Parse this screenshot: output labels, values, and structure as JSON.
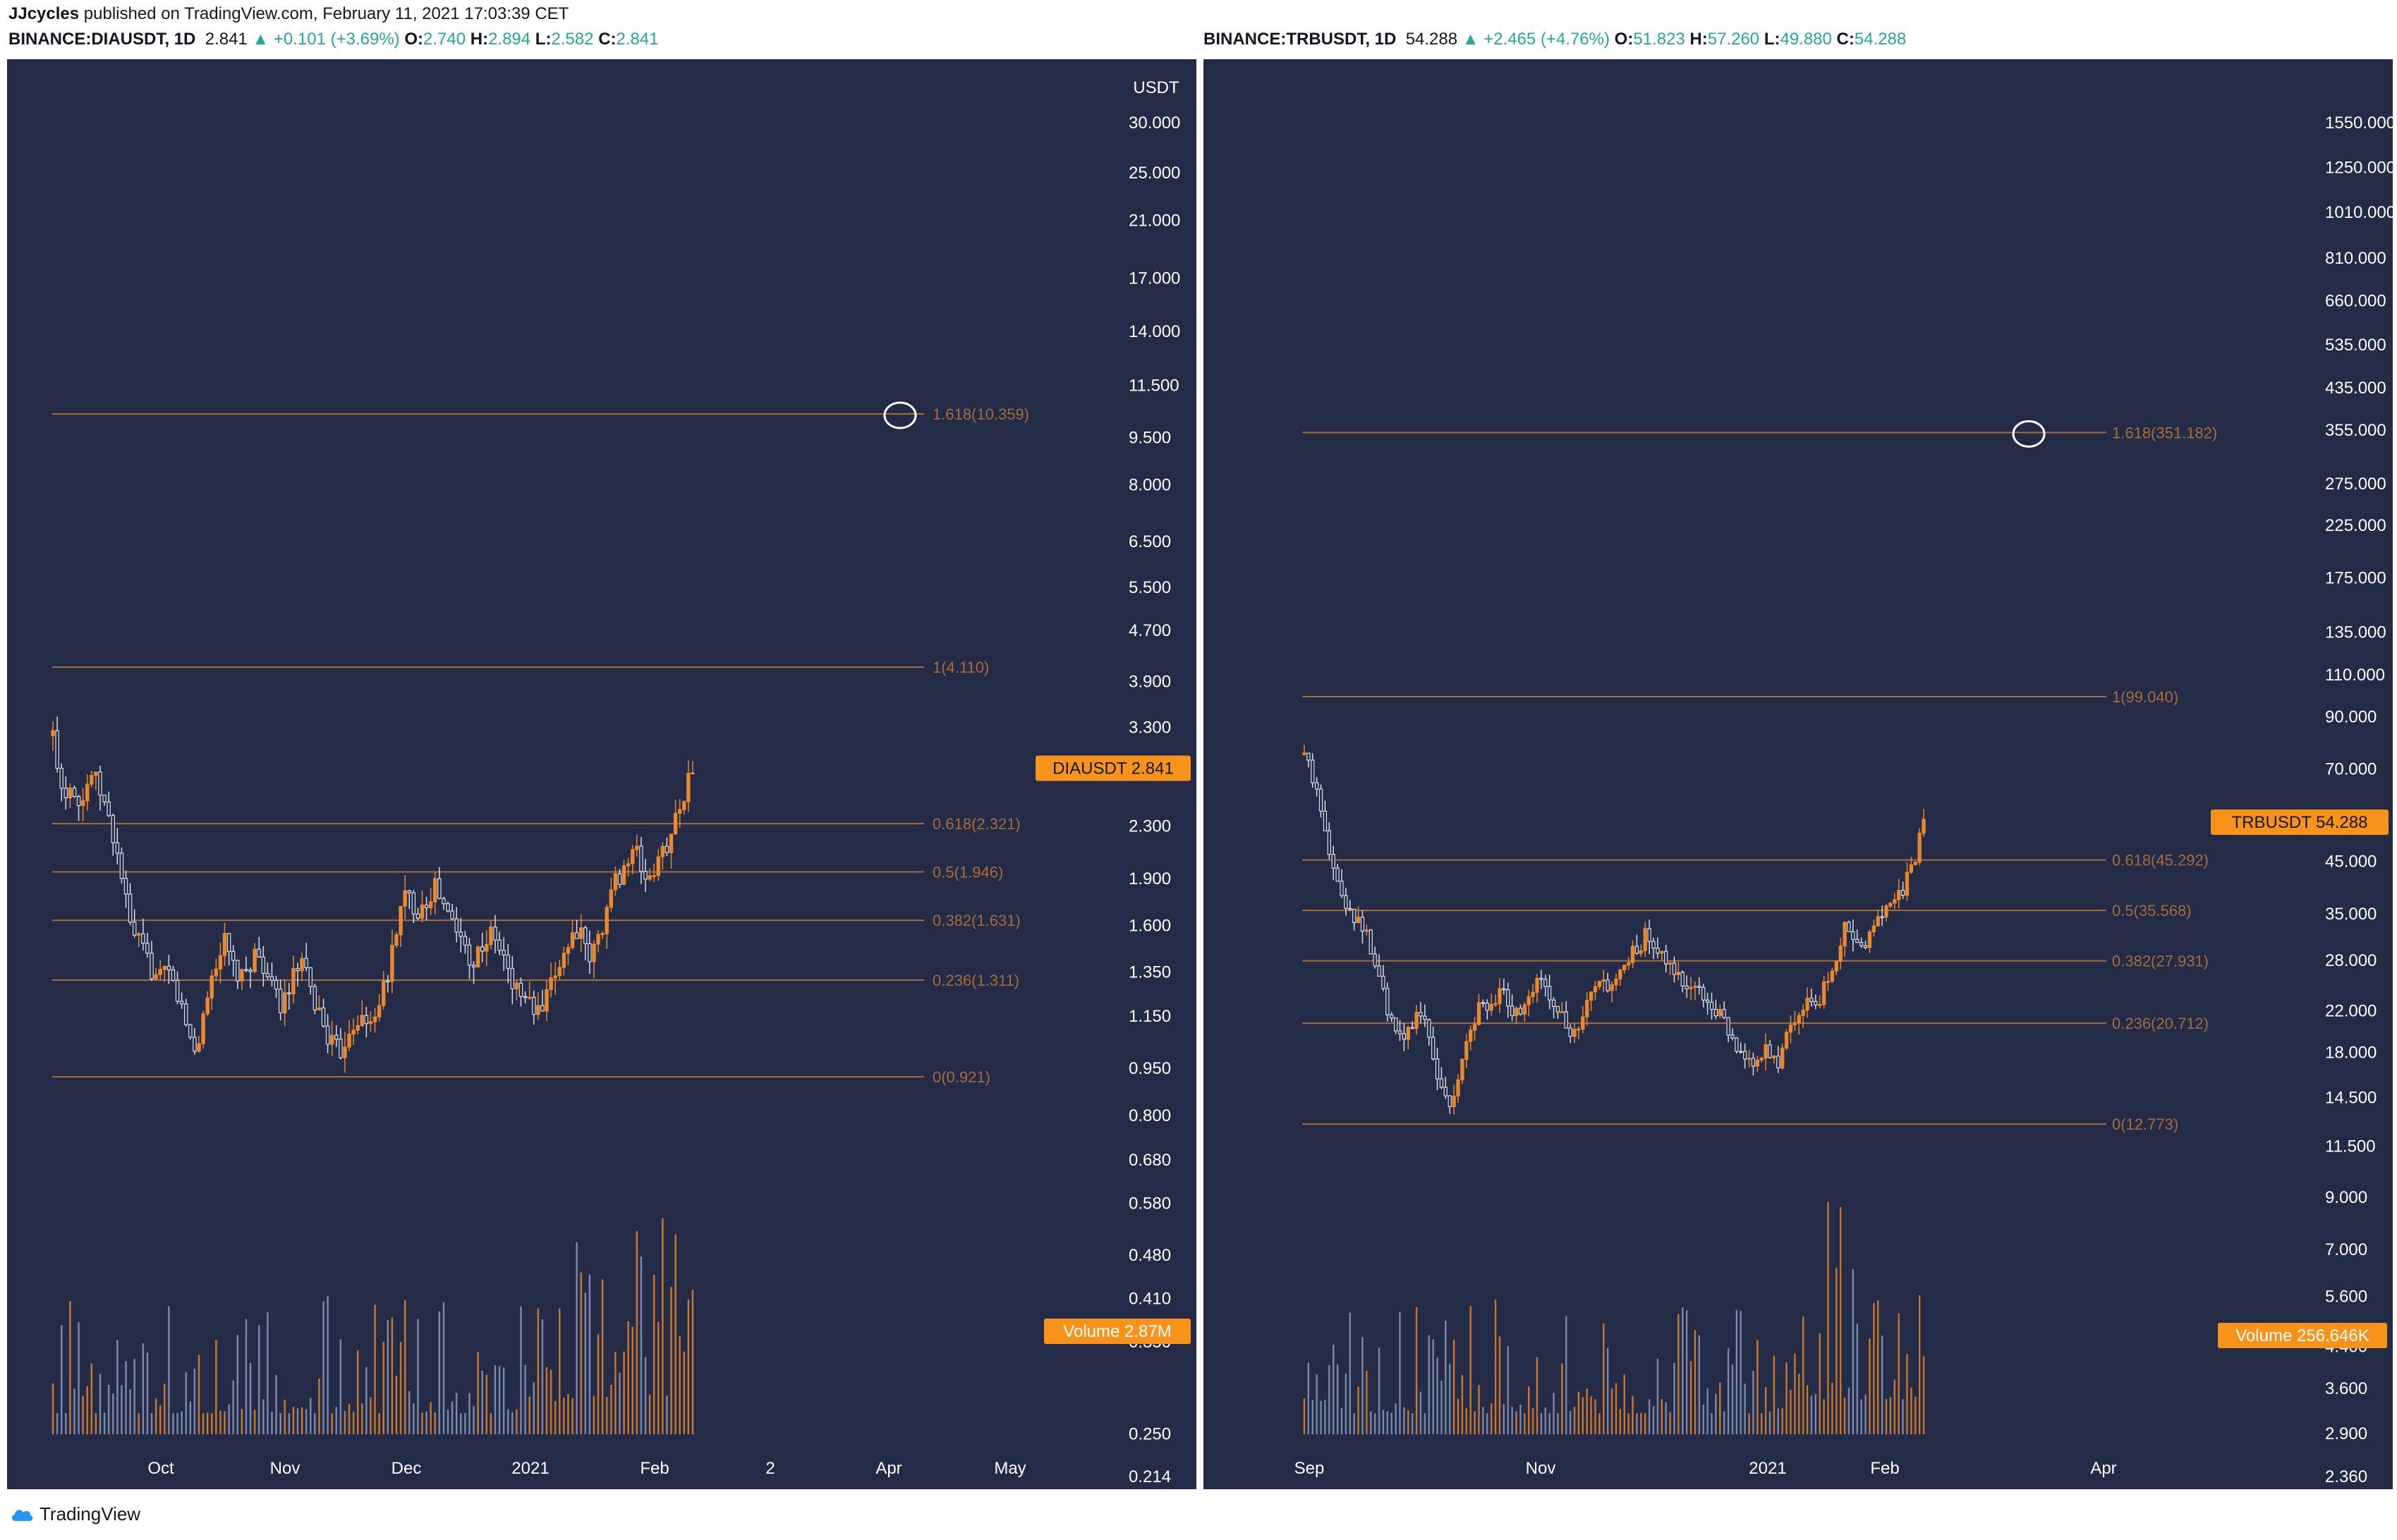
{
  "header": {
    "author": "JJcycles",
    "published": "published on TradingView.com, February 11, 2021 17:03:39 CET"
  },
  "footer": {
    "brand": "TradingView",
    "logo_icon": "tradingview-cloud-icon"
  },
  "colors": {
    "background": "#232b47",
    "bull_candle": "#e8892f",
    "bear_candle": "#d8dce8",
    "volume_up": "#c9782e",
    "volume_down": "#7d88aa",
    "fib_line": "#a86c3a",
    "badge": "#f7931a"
  },
  "chart_data": [
    {
      "type": "candlestick",
      "symbol": "BINANCE:DIAUSDT, 1D",
      "quote": {
        "last": "2.841",
        "change": "▲ +0.101 (+3.69%)",
        "O": "2.740",
        "H": "2.894",
        "L": "2.582",
        "C": "2.841"
      },
      "y_scale": "log",
      "currency": "USDT",
      "y_ticks": [
        "30.000",
        "25.000",
        "21.000",
        "17.000",
        "14.000",
        "11.500",
        "9.500",
        "8.000",
        "6.500",
        "5.500",
        "4.700",
        "3.900",
        "3.300",
        "2.300",
        "1.900",
        "1.600",
        "1.350",
        "1.150",
        "0.950",
        "0.800",
        "0.680",
        "0.580",
        "0.480",
        "0.410",
        "0.350",
        "0.250",
        "0.214"
      ],
      "x_ticks": [
        "Oct",
        "Nov",
        "Dec",
        "2021",
        "Feb",
        "2",
        "Apr",
        "May"
      ],
      "fib_levels": [
        {
          "label": "1.618(10.359)",
          "value": 10.359
        },
        {
          "label": "1(4.110)",
          "value": 4.11
        },
        {
          "label": "0.618(2.321)",
          "value": 2.321
        },
        {
          "label": "0.5(1.946)",
          "value": 1.946
        },
        {
          "label": "0.382(1.631)",
          "value": 1.631
        },
        {
          "label": "0.236(1.311)",
          "value": 1.311
        },
        {
          "label": "0(0.921)",
          "value": 0.921
        }
      ],
      "price_badge": {
        "label": "DIAUSDT",
        "value": "2.841"
      },
      "volume_badge": {
        "label": "Volume",
        "value": "2.87M"
      },
      "close_path": [
        3.2,
        2.6,
        2.7,
        2.5,
        2.8,
        2.6,
        2.3,
        2.0,
        1.6,
        1.5,
        1.4,
        1.3,
        1.35,
        1.25,
        1.1,
        1.0,
        1.2,
        1.4,
        1.5,
        1.35,
        1.3,
        1.45,
        1.4,
        1.25,
        1.2,
        1.3,
        1.4,
        1.25,
        1.15,
        1.05,
        1.0,
        1.1,
        1.15,
        1.1,
        1.2,
        1.3,
        1.6,
        1.8,
        1.7,
        1.75,
        1.85,
        1.7,
        1.6,
        1.5,
        1.4,
        1.5,
        1.55,
        1.45,
        1.3,
        1.25,
        1.2,
        1.15,
        1.25,
        1.4,
        1.5,
        1.6,
        1.4,
        1.5,
        1.7,
        1.9,
        2.0,
        2.1,
        1.9,
        1.95,
        2.1,
        2.3,
        2.6,
        2.8
      ]
    },
    {
      "type": "candlestick",
      "symbol": "BINANCE:TRBUSDT, 1D",
      "quote": {
        "last": "54.288",
        "change": "▲ +2.465 (+4.76%)",
        "O": "51.823",
        "H": "57.260",
        "L": "49.880",
        "C": "54.288"
      },
      "y_scale": "log",
      "y_ticks": [
        "1550.000",
        "1250.000",
        "1010.000",
        "810.000",
        "660.000",
        "535.000",
        "435.000",
        "355.000",
        "275.000",
        "225.000",
        "175.000",
        "135.000",
        "110.000",
        "90.000",
        "70.000",
        "45.000",
        "35.000",
        "28.000",
        "22.000",
        "18.000",
        "14.500",
        "11.500",
        "9.000",
        "7.000",
        "5.600",
        "4.400",
        "3.600",
        "2.900",
        "2.360"
      ],
      "x_ticks": [
        "Sep",
        "Nov",
        "2021",
        "Feb",
        "Apr"
      ],
      "fib_levels": [
        {
          "label": "1.618(351.182)",
          "value": 351.182
        },
        {
          "label": "1(99.040)",
          "value": 99.04
        },
        {
          "label": "0.618(45.292)",
          "value": 45.292
        },
        {
          "label": "0.5(35.568)",
          "value": 35.568
        },
        {
          "label": "0.382(27.931)",
          "value": 27.931
        },
        {
          "label": "0.236(20.712)",
          "value": 20.712
        },
        {
          "label": "0(12.773)",
          "value": 12.773
        }
      ],
      "price_badge": {
        "label": "TRBUSDT",
        "value": "54.288"
      },
      "volume_badge": {
        "label": "Volume",
        "value": "256.646K"
      },
      "close_path": [
        75,
        65,
        55,
        42,
        38,
        35,
        33,
        28,
        24,
        20,
        19,
        21,
        22,
        18,
        15,
        14,
        17,
        20,
        24,
        22,
        25,
        21,
        22,
        23,
        26,
        24,
        22,
        19,
        20,
        23,
        25,
        24,
        26,
        28,
        30,
        32,
        29,
        27,
        26,
        25,
        24,
        23,
        22,
        20,
        18,
        17,
        17.5,
        18,
        17,
        19,
        21,
        23,
        22,
        25,
        28,
        33,
        31,
        30,
        33,
        35,
        38,
        40,
        45,
        54
      ]
    }
  ]
}
